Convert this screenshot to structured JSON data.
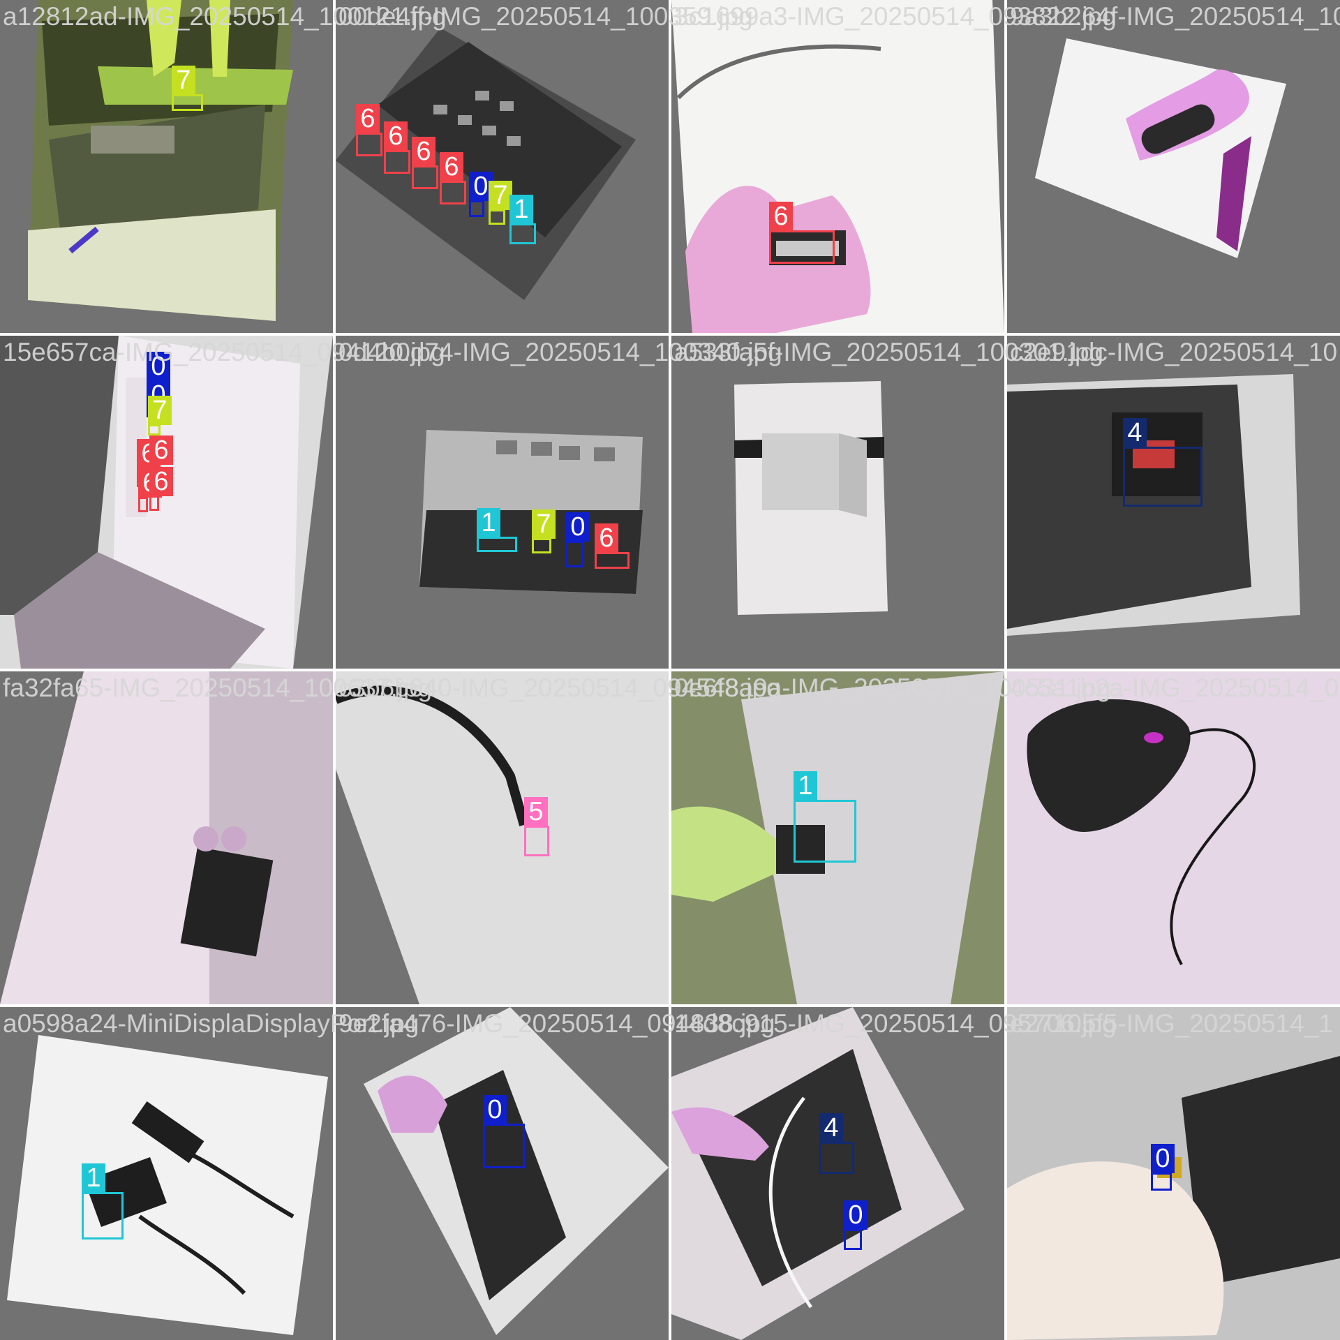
{
  "class_colors": {
    "0": "#0f1fcc",
    "1": "#1fc7d6",
    "4": "#142a6e",
    "5": "#ff70c0",
    "6": "#f0414a",
    "7": "#c5e020"
  },
  "tiles": [
    {
      "filename": "a12812ad-IMG_20250514_100121.jpg",
      "boxes": [
        {
          "cls": "7"
        }
      ]
    },
    {
      "filename": "00de4ff-IMG_20250514_100359.jpg",
      "boxes": [
        {
          "cls": "6"
        },
        {
          "cls": "6"
        },
        {
          "cls": "6"
        },
        {
          "cls": "6"
        },
        {
          "cls": "0"
        },
        {
          "cls": "7"
        },
        {
          "cls": "1"
        }
      ]
    },
    {
      "filename": "3c1699a3-IMG_20250514_093822.jpg",
      "boxes": [
        {
          "cls": "6"
        }
      ]
    },
    {
      "filename": "9a3b264f-IMG_20250514_10",
      "boxes": []
    },
    {
      "filename": "15e657ca-IMG_20250514_094120.jpg",
      "boxes": [
        {
          "cls": "0"
        },
        {
          "cls": "0"
        },
        {
          "cls": "7"
        },
        {
          "cls": "6"
        },
        {
          "cls": "6"
        },
        {
          "cls": "6"
        },
        {
          "cls": "6"
        }
      ]
    },
    {
      "filename": "0d4b0d74-IMG_20250514_100340.jpg",
      "boxes": [
        {
          "cls": "1"
        },
        {
          "cls": "7"
        },
        {
          "cls": "0"
        },
        {
          "cls": "6"
        }
      ]
    },
    {
      "filename": "a533fa5f-IMG_20250514_100301.jpg",
      "boxes": []
    },
    {
      "filename": "c2e91dc-IMG_20250514_10",
      "boxes": [
        {
          "cls": "4"
        }
      ]
    },
    {
      "filename": "fa32fa65-IMG_20250514_100637.jpg",
      "boxes": []
    },
    {
      "filename": "c3b6b640-IMG_20250514_094548.jpg",
      "boxes": [
        {
          "cls": "5"
        }
      ]
    },
    {
      "filename": "0e6f8a9a-IMG_20250514_100531.jpg",
      "boxes": [
        {
          "cls": "1"
        }
      ]
    },
    {
      "filename": "4c5a1b2a-IMG_20250514_0",
      "boxes": []
    },
    {
      "filename": "a0598a24-MiniDisplaDisplayPort.jpg",
      "boxes": [
        {
          "cls": "1"
        }
      ]
    },
    {
      "filename": "9e2fa476-IMG_20250514_094838.jpg",
      "boxes": [
        {
          "cls": "0"
        }
      ]
    },
    {
      "filename": "14d8c915-IMG_20250514_095706.jpg",
      "boxes": [
        {
          "cls": "4"
        },
        {
          "cls": "0"
        }
      ]
    },
    {
      "filename": "e27105f5-IMG_20250514_1",
      "boxes": [
        {
          "cls": "0"
        }
      ]
    }
  ]
}
